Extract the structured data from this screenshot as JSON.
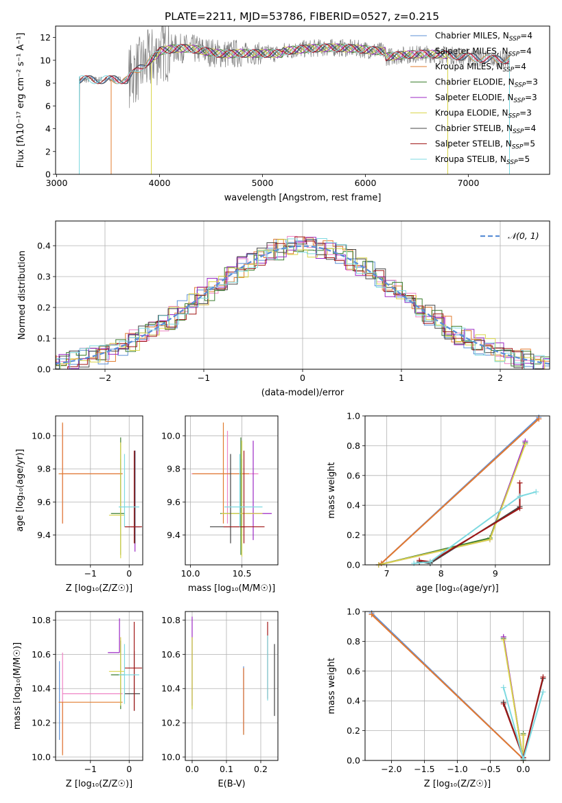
{
  "figure": {
    "title": "PLATE=2211, MJD=53786, FIBERID=0527, z=0.215"
  },
  "chart_data": [
    {
      "id": "spectrum",
      "type": "line",
      "xlabel": "wavelength [Angstrom, rest frame]",
      "ylabel": "Flux [fλ10⁻¹⁷ erg cm⁻² s⁻¹ A⁻¹]",
      "xlim": [
        2990,
        7790
      ],
      "ylim": [
        0,
        13
      ],
      "xticks": [
        3000,
        4000,
        5000,
        6000,
        7000
      ],
      "yticks": [
        0,
        2,
        4,
        6,
        8,
        10,
        12
      ],
      "grid": false,
      "legend_position": "top-right",
      "series": [
        {
          "name": "Chabrier MILES, N_SSP=4",
          "label_main": "Chabrier MILES, N",
          "label_sub": "SSP",
          "label_end": "=4",
          "color": "#5b8fd6",
          "start": 3220,
          "end": 7400,
          "kind": "model"
        },
        {
          "name": "Salpeter MILES, N_SSP=4",
          "label_main": "Salpeter MILES, N",
          "label_sub": "SSP",
          "label_end": "=4",
          "color": "#ee82c4",
          "start": 3530,
          "end": 7400,
          "kind": "model"
        },
        {
          "name": "Kroupa MILES, N_SSP=4",
          "label_main": "Kroupa MILES, N",
          "label_sub": "SSP",
          "label_end": "=4",
          "color": "#e07b2e",
          "start": 3530,
          "end": 7400,
          "kind": "model"
        },
        {
          "name": "Chabrier ELODIE, N_SSP=3",
          "label_main": "Chabrier ELODIE, N",
          "label_sub": "SSP",
          "label_end": "=3",
          "color": "#3a7d2c",
          "start": 3920,
          "end": 6800,
          "kind": "model"
        },
        {
          "name": "Salpeter ELODIE, N_SSP=3",
          "label_main": "Salpeter ELODIE, N",
          "label_sub": "SSP",
          "label_end": "=3",
          "color": "#9b27c4",
          "start": 3920,
          "end": 6800,
          "kind": "model"
        },
        {
          "name": "Kroupa ELODIE, N_SSP=3",
          "label_main": "Kroupa ELODIE, N",
          "label_sub": "SSP",
          "label_end": "=3",
          "color": "#d9d54a",
          "start": 3920,
          "end": 6800,
          "kind": "model"
        },
        {
          "name": "Chabrier STELIB, N_SSP=4",
          "label_main": "Chabrier STELIB, N",
          "label_sub": "SSP",
          "label_end": "=4",
          "color": "#444444",
          "start": 3220,
          "end": 7400,
          "kind": "model"
        },
        {
          "name": "Salpeter STELIB, N_SSP=5",
          "label_main": "Salpeter STELIB, N",
          "label_sub": "SSP",
          "label_end": "=5",
          "color": "#a01515",
          "start": 3220,
          "end": 7400,
          "kind": "model"
        },
        {
          "name": "Kroupa STELIB, N_SSP=5",
          "label_main": "Kroupa STELIB, N",
          "label_sub": "SSP",
          "label_end": "=5",
          "color": "#7dd9e0",
          "start": 3220,
          "end": 7400,
          "kind": "model"
        }
      ]
    },
    {
      "id": "residuals",
      "type": "line",
      "xlabel": "(data-model)/error",
      "ylabel": "Normed distribution",
      "xlim": [
        -2.5,
        2.5
      ],
      "ylim": [
        0,
        0.48
      ],
      "xticks": [
        -2,
        -1,
        0,
        1,
        2
      ],
      "xtick_labels": [
        "−2",
        "−1",
        "0",
        "1",
        "2"
      ],
      "yticks": [
        0.0,
        0.1,
        0.2,
        0.3,
        0.4
      ],
      "ytick_labels": [
        "0.0",
        "0.1",
        "0.2",
        "0.3",
        "0.4"
      ],
      "grid": true,
      "legend_position": "top-right",
      "legend": "𝒩(0, 1)",
      "normal_curve": {
        "mean": 0,
        "sigma": 1,
        "color": "#5b8fd6"
      }
    },
    {
      "id": "age-vs-Z",
      "type": "scatter",
      "xlabel": "Z [log₁₀(Z/Z☉)]",
      "ylabel": "age  [log₁₀(age/yr)]",
      "xlim": [
        -1.9,
        0.35
      ],
      "ylim": [
        9.22,
        10.12
      ],
      "xticks": [
        -1,
        0
      ],
      "xtick_labels": [
        "−1",
        "0"
      ],
      "yticks": [
        9.4,
        9.6,
        9.8,
        10.0
      ],
      "ytick_labels": [
        "9.4",
        "9.6",
        "9.8",
        "10.0"
      ],
      "grid": true,
      "errorbars": [
        {
          "color": "#5b8fd6",
          "x": -0.22,
          "xerr": [
            0.0,
            0.0
          ],
          "y": 9.56,
          "yerr": [
            0.11,
            0.3
          ]
        },
        {
          "color": "#ee82c4",
          "x": -1.72,
          "xerr": [
            0.0,
            1.55
          ],
          "y": 9.77,
          "yerr": [
            0.3,
            0.3
          ]
        },
        {
          "color": "#e07b2e",
          "x": -1.72,
          "xerr": [
            0.1,
            1.55
          ],
          "y": 9.77,
          "yerr": [
            0.3,
            0.31
          ]
        },
        {
          "color": "#3a7d2c",
          "x": -0.22,
          "xerr": [
            0.25,
            0.1
          ],
          "y": 9.53,
          "yerr": [
            0.25,
            0.46
          ]
        },
        {
          "color": "#9b27c4",
          "x": 0.15,
          "xerr": [
            0.1,
            0.12
          ],
          "y": 9.45,
          "yerr": [
            0.15,
            0.46
          ]
        },
        {
          "color": "#d9d54a",
          "x": -0.22,
          "xerr": [
            0.3,
            0.1
          ],
          "y": 9.52,
          "yerr": [
            0.26,
            0.44
          ]
        },
        {
          "color": "#444444",
          "x": 0.15,
          "xerr": [
            0.25,
            0.15
          ],
          "y": 9.45,
          "yerr": [
            0.1,
            0.46
          ]
        },
        {
          "color": "#a01515",
          "x": 0.13,
          "xerr": [
            0.25,
            0.2
          ],
          "y": 9.45,
          "yerr": [
            0.1,
            0.46
          ]
        },
        {
          "color": "#7dd9e0",
          "x": -0.12,
          "xerr": [
            0.15,
            0.38
          ],
          "y": 9.57,
          "yerr": [
            0.12,
            0.32
          ]
        }
      ]
    },
    {
      "id": "age-vs-mass",
      "type": "scatter",
      "xlabel": "mass [log₁₀(M/M☉)]",
      "xlim": [
        9.95,
        10.85
      ],
      "ylim": [
        9.22,
        10.12
      ],
      "xticks": [
        10.0,
        10.5
      ],
      "xtick_labels": [
        "10.0",
        "10.5"
      ],
      "yticks": [
        9.4,
        9.6,
        9.8,
        10.0
      ],
      "ytick_labels": [
        "9.4",
        "9.6",
        "9.8",
        "10.0"
      ],
      "grid": true,
      "errorbars": [
        {
          "color": "#5b8fd6",
          "x": 10.5,
          "xerr": [
            0.0,
            0.0
          ],
          "y": 9.56,
          "yerr": [
            0.11,
            0.3
          ]
        },
        {
          "color": "#ee82c4",
          "x": 10.36,
          "xerr": [
            0.35,
            0.3
          ],
          "y": 9.77,
          "yerr": [
            0.3,
            0.26
          ]
        },
        {
          "color": "#e07b2e",
          "x": 10.32,
          "xerr": [
            0.3,
            0.25
          ],
          "y": 9.77,
          "yerr": [
            0.3,
            0.31
          ]
        },
        {
          "color": "#3a7d2c",
          "x": 10.49,
          "xerr": [
            0.2,
            0.2
          ],
          "y": 9.53,
          "yerr": [
            0.25,
            0.46
          ]
        },
        {
          "color": "#9b27c4",
          "x": 10.61,
          "xerr": [
            0.15,
            0.18
          ],
          "y": 9.53,
          "yerr": [
            0.16,
            0.44
          ]
        },
        {
          "color": "#d9d54a",
          "x": 10.5,
          "xerr": [
            0.2,
            0.2
          ],
          "y": 9.53,
          "yerr": [
            0.26,
            0.44
          ]
        },
        {
          "color": "#444444",
          "x": 10.39,
          "xerr": [
            0.2,
            0.15
          ],
          "y": 9.45,
          "yerr": [
            0.1,
            0.44
          ]
        },
        {
          "color": "#a01515",
          "x": 10.52,
          "xerr": [
            0.2,
            0.2
          ],
          "y": 9.45,
          "yerr": [
            0.1,
            0.46
          ]
        },
        {
          "color": "#7dd9e0",
          "x": 10.48,
          "xerr": [
            0.15,
            0.22
          ],
          "y": 9.57,
          "yerr": [
            0.12,
            0.32
          ]
        }
      ]
    },
    {
      "id": "mass-weight-vs-age",
      "type": "line",
      "xlabel": "age  [log₁₀(age/yr)]",
      "ylabel": "mass weight",
      "xlim": [
        6.6,
        10.0
      ],
      "ylim": [
        0.0,
        1.0
      ],
      "xticks": [
        7,
        8,
        9
      ],
      "yticks": [
        0.0,
        0.2,
        0.4,
        0.6,
        0.8,
        1.0
      ],
      "ytick_labels": [
        "0.0",
        "0.2",
        "0.4",
        "0.6",
        "0.8",
        "1.0"
      ],
      "grid": true,
      "series": [
        {
          "color": "#5b8fd6",
          "x": [
            6.9,
            9.8
          ],
          "y": [
            0.01,
            0.99
          ]
        },
        {
          "color": "#ee82c4",
          "x": [
            6.9,
            9.8
          ],
          "y": [
            0.01,
            0.98
          ]
        },
        {
          "color": "#e07b2e",
          "x": [
            6.9,
            9.8
          ],
          "y": [
            0.01,
            0.98
          ]
        },
        {
          "color": "#3a7d2c",
          "x": [
            6.85,
            8.9,
            9.55
          ],
          "y": [
            0.0,
            0.18,
            0.82
          ]
        },
        {
          "color": "#9b27c4",
          "x": [
            6.85,
            8.9,
            9.55
          ],
          "y": [
            0.0,
            0.17,
            0.83
          ]
        },
        {
          "color": "#d9d54a",
          "x": [
            6.85,
            8.9,
            9.55
          ],
          "y": [
            0.0,
            0.17,
            0.81
          ]
        },
        {
          "color": "#444444",
          "x": [
            7.6,
            7.8,
            9.45
          ],
          "y": [
            0.02,
            0.01,
            0.39
          ]
        },
        {
          "color": "#a01515",
          "x": [
            7.6,
            7.8,
            9.45,
            9.45
          ],
          "y": [
            0.03,
            0.02,
            0.38,
            0.55
          ]
        },
        {
          "color": "#7dd9e0",
          "x": [
            7.5,
            7.8,
            9.45,
            9.75
          ],
          "y": [
            0.01,
            0.02,
            0.46,
            0.49
          ]
        }
      ]
    },
    {
      "id": "mass-vs-Z",
      "type": "scatter",
      "xlabel": "Z [log₁₀(Z/Z☉)]",
      "ylabel": "mass [log₁₀(M/M☉)]",
      "xlim": [
        -1.9,
        0.35
      ],
      "ylim": [
        9.98,
        10.85
      ],
      "xticks": [
        -1,
        0
      ],
      "xtick_labels": [
        "−1",
        "0"
      ],
      "yticks": [
        10.0,
        10.2,
        10.4,
        10.6,
        10.8
      ],
      "ytick_labels": [
        "10.0",
        "10.2",
        "10.4",
        "10.6",
        "10.8"
      ],
      "grid": true,
      "errorbars": [
        {
          "color": "#5b8fd6",
          "x": -1.8,
          "xerr": [
            0.0,
            0.0
          ],
          "y": 10.33,
          "yerr": [
            0.23,
            0.23
          ]
        },
        {
          "color": "#ee82c4",
          "x": -1.72,
          "xerr": [
            0.0,
            1.55
          ],
          "y": 10.37,
          "yerr": [
            0.35,
            0.24
          ]
        },
        {
          "color": "#e07b2e",
          "x": -1.72,
          "xerr": [
            0.1,
            1.55
          ],
          "y": 10.32,
          "yerr": [
            0.31,
            0.0
          ]
        },
        {
          "color": "#3a7d2c",
          "x": -0.22,
          "xerr": [
            0.25,
            0.1
          ],
          "y": 10.48,
          "yerr": [
            0.2,
            0.2
          ]
        },
        {
          "color": "#9b27c4",
          "x": -0.25,
          "xerr": [
            0.3,
            0.0
          ],
          "y": 10.61,
          "yerr": [
            0.0,
            0.2
          ]
        },
        {
          "color": "#d9d54a",
          "x": -0.22,
          "xerr": [
            0.3,
            0.1
          ],
          "y": 10.5,
          "yerr": [
            0.2,
            0.2
          ]
        },
        {
          "color": "#444444",
          "x": 0.13,
          "xerr": [
            0.25,
            0.15
          ],
          "y": 10.37,
          "yerr": [
            0.1,
            0.25
          ]
        },
        {
          "color": "#a01515",
          "x": 0.13,
          "xerr": [
            0.25,
            0.2
          ],
          "y": 10.52,
          "yerr": [
            0.25,
            0.27
          ]
        },
        {
          "color": "#7dd9e0",
          "x": -0.12,
          "xerr": [
            0.15,
            0.38
          ],
          "y": 10.48,
          "yerr": [
            0.17,
            0.18
          ]
        }
      ]
    },
    {
      "id": "mass-vs-EBV",
      "type": "scatter",
      "xlabel": "E(B-V)",
      "xlim": [
        -0.02,
        0.25
      ],
      "ylim": [
        9.98,
        10.85
      ],
      "xticks": [
        0.0,
        0.1,
        0.2
      ],
      "xtick_labels": [
        "0.0",
        "0.1",
        "0.2"
      ],
      "yticks": [
        10.0,
        10.2,
        10.4,
        10.6,
        10.8
      ],
      "ytick_labels": [
        "10.0",
        "10.2",
        "10.4",
        "10.6",
        "10.8"
      ],
      "grid": true,
      "errorbars": [
        {
          "color": "#5b8fd6",
          "x": 0.15,
          "xerr": [
            0.0,
            0.0
          ],
          "y": 10.33,
          "yerr": [
            0.2,
            0.2
          ]
        },
        {
          "color": "#ee82c4",
          "x": 0.15,
          "xerr": [
            0.0,
            0.0
          ],
          "y": 10.37,
          "yerr": [
            0.22,
            0.15
          ]
        },
        {
          "color": "#e07b2e",
          "x": 0.15,
          "xerr": [
            0.0,
            0.0
          ],
          "y": 10.33,
          "yerr": [
            0.2,
            0.19
          ]
        },
        {
          "color": "#3a7d2c",
          "x": 0.0,
          "xerr": [
            0.0,
            0.0
          ],
          "y": 10.5,
          "yerr": [
            0.22,
            0.2
          ]
        },
        {
          "color": "#9b27c4",
          "x": 0.0,
          "xerr": [
            0.0,
            0.0
          ],
          "y": 10.6,
          "yerr": [
            0.3,
            0.22
          ]
        },
        {
          "color": "#d9d54a",
          "x": 0.0,
          "xerr": [
            0.0,
            0.0
          ],
          "y": 10.5,
          "yerr": [
            0.22,
            0.2
          ]
        },
        {
          "color": "#444444",
          "x": 0.24,
          "xerr": [
            0.0,
            0.0
          ],
          "y": 10.45,
          "yerr": [
            0.21,
            0.21
          ]
        },
        {
          "color": "#a01515",
          "x": 0.22,
          "xerr": [
            0.0,
            0.0
          ],
          "y": 10.55,
          "yerr": [
            0.21,
            0.24
          ]
        },
        {
          "color": "#7dd9e0",
          "x": 0.22,
          "xerr": [
            0.0,
            0.0
          ],
          "y": 10.5,
          "yerr": [
            0.17,
            0.21
          ]
        }
      ]
    },
    {
      "id": "mass-weight-vs-Z",
      "type": "line",
      "xlabel": "Z [log₁₀(Z/Z☉)]",
      "ylabel": "mass weight",
      "xlim": [
        -2.4,
        0.4
      ],
      "ylim": [
        0.0,
        1.0
      ],
      "xticks": [
        -2.0,
        -1.5,
        -1.0,
        -0.5,
        0.0
      ],
      "xtick_labels": [
        "−2.0",
        "−1.5",
        "−1.0",
        "−0.5",
        "0.0"
      ],
      "yticks": [
        0.0,
        0.2,
        0.4,
        0.6,
        0.8,
        1.0
      ],
      "ytick_labels": [
        "0.0",
        "0.2",
        "0.4",
        "0.6",
        "0.8",
        "1.0"
      ],
      "grid": true,
      "series": [
        {
          "color": "#5b8fd6",
          "x": [
            -2.3,
            0.0
          ],
          "y": [
            0.99,
            0.01
          ]
        },
        {
          "color": "#ee82c4",
          "x": [
            -2.3,
            0.0
          ],
          "y": [
            0.98,
            0.01
          ]
        },
        {
          "color": "#e07b2e",
          "x": [
            -2.3,
            0.0
          ],
          "y": [
            0.98,
            0.01
          ]
        },
        {
          "color": "#3a7d2c",
          "x": [
            -0.3,
            0.0,
            0.0
          ],
          "y": [
            0.82,
            0.0,
            0.18
          ]
        },
        {
          "color": "#9b27c4",
          "x": [
            -0.3,
            0.0,
            0.0
          ],
          "y": [
            0.83,
            0.0,
            0.17
          ]
        },
        {
          "color": "#d9d54a",
          "x": [
            -0.3,
            0.0,
            0.0
          ],
          "y": [
            0.81,
            0.0,
            0.17
          ]
        },
        {
          "color": "#444444",
          "x": [
            -0.3,
            0.0,
            0.3
          ],
          "y": [
            0.39,
            0.02,
            0.55
          ]
        },
        {
          "color": "#a01515",
          "x": [
            -0.3,
            0.0,
            0.3
          ],
          "y": [
            0.38,
            0.02,
            0.56
          ]
        },
        {
          "color": "#7dd9e0",
          "x": [
            -0.3,
            0.0,
            0.3
          ],
          "y": [
            0.49,
            0.01,
            0.46
          ]
        }
      ]
    }
  ]
}
